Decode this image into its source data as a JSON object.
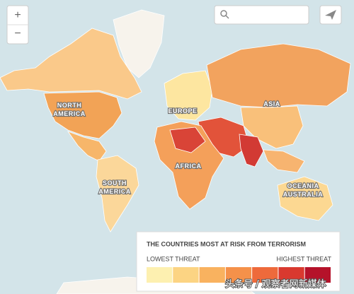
{
  "controls": {
    "zoom_in": "+",
    "zoom_out": "−"
  },
  "labels": [
    {
      "lines": [
        "NORTH",
        "AMERICA"
      ]
    },
    {
      "lines": [
        "EUROPE"
      ]
    },
    {
      "lines": [
        "ASIA"
      ]
    },
    {
      "lines": [
        "AFRICA"
      ]
    },
    {
      "lines": [
        "SOUTH",
        "AMERICA"
      ]
    },
    {
      "lines": [
        "OCEANIA",
        "AUSTRALIA"
      ]
    }
  ],
  "legend": {
    "title": "THE COUNTRIES MOST AT RISK FROM TERRORISM",
    "low": "LOWEST THREAT",
    "high": "HIGHEST THREAT",
    "colors": [
      "#fdf0b0",
      "#fcd483",
      "#f9b25f",
      "#f5914a",
      "#ee6a3b",
      "#d9392f",
      "#b5122a"
    ]
  },
  "watermark": "头条号 / 观察者网新媒体"
}
